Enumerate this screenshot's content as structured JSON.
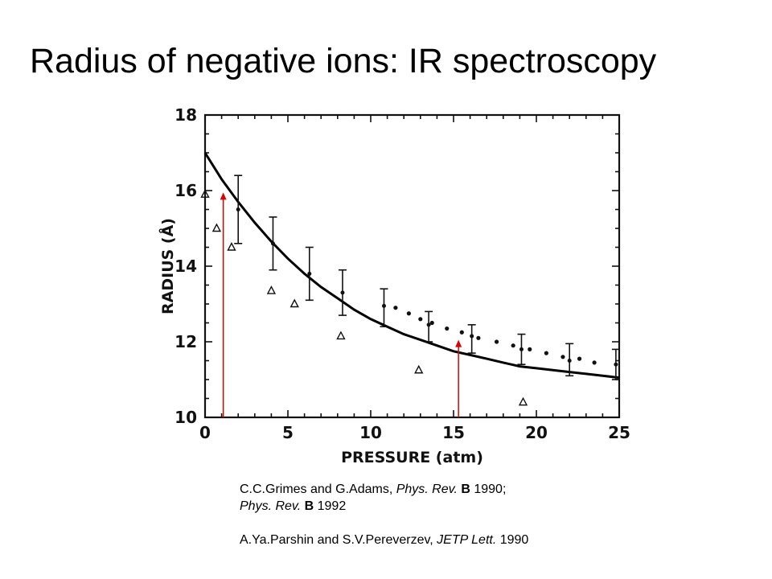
{
  "slide": {
    "title": "Radius of negative ions: IR spectroscopy"
  },
  "references": {
    "ref1_part1": "C.C.Grimes and G.Adams, ",
    "ref1_journal1": "Phys. Rev.",
    "ref1_vol1": "B",
    "ref1_year1": " 1990;",
    "ref1_journal2": "Phys. Rev.",
    "ref1_vol2": "B",
    "ref1_year2": " 1992",
    "ref2_authors": "A.Ya.Parshin and S.V.Pereverzev, ",
    "ref2_journal": "JETP Lett.",
    "ref2_year": " 1990"
  },
  "colors": {
    "axis": "#111111",
    "curve": "#000000",
    "arrow": "#dd0000"
  },
  "chart_data": {
    "type": "scatter",
    "xlabel": "PRESSURE (atm)",
    "ylabel": "RADIUS (Å)",
    "xlim": [
      0,
      25
    ],
    "ylim": [
      10,
      18
    ],
    "xticks": [
      0,
      5,
      10,
      15,
      20,
      25
    ],
    "yticks": [
      10,
      12,
      14,
      16,
      18
    ],
    "grid": false,
    "series": [
      {
        "kind": "curve",
        "points": [
          [
            0,
            17.0
          ],
          [
            1,
            16.3
          ],
          [
            2,
            15.7
          ],
          [
            3,
            15.15
          ],
          [
            4,
            14.65
          ],
          [
            5,
            14.2
          ],
          [
            6,
            13.8
          ],
          [
            7,
            13.45
          ],
          [
            8,
            13.15
          ],
          [
            9,
            12.85
          ],
          [
            10,
            12.6
          ],
          [
            11,
            12.4
          ],
          [
            12,
            12.2
          ],
          [
            13,
            12.05
          ],
          [
            14,
            11.9
          ],
          [
            15,
            11.75
          ],
          [
            16,
            11.65
          ],
          [
            17,
            11.55
          ],
          [
            18,
            11.45
          ],
          [
            19,
            11.35
          ],
          [
            20,
            11.3
          ],
          [
            21,
            11.25
          ],
          [
            22,
            11.2
          ],
          [
            23,
            11.15
          ],
          [
            24,
            11.1
          ],
          [
            25,
            11.05
          ]
        ]
      },
      {
        "kind": "errorbar",
        "points": [
          {
            "x": 2.0,
            "y": 15.5,
            "lo": 14.6,
            "hi": 16.4
          },
          {
            "x": 4.1,
            "y": 14.6,
            "lo": 13.9,
            "hi": 15.3
          },
          {
            "x": 6.3,
            "y": 13.8,
            "lo": 13.1,
            "hi": 14.5
          },
          {
            "x": 8.3,
            "y": 13.3,
            "lo": 12.7,
            "hi": 13.9
          },
          {
            "x": 10.8,
            "y": 12.95,
            "lo": 12.4,
            "hi": 13.4
          },
          {
            "x": 13.5,
            "y": 12.45,
            "lo": 12.0,
            "hi": 12.8
          },
          {
            "x": 16.1,
            "y": 12.15,
            "lo": 11.7,
            "hi": 12.45
          },
          {
            "x": 19.1,
            "y": 11.8,
            "lo": 11.4,
            "hi": 12.2
          },
          {
            "x": 22.0,
            "y": 11.5,
            "lo": 11.1,
            "hi": 11.95
          },
          {
            "x": 24.8,
            "y": 11.4,
            "lo": 11.0,
            "hi": 11.8
          }
        ]
      },
      {
        "kind": "dots",
        "points": [
          [
            11.5,
            12.9
          ],
          [
            12.3,
            12.75
          ],
          [
            13.0,
            12.6
          ],
          [
            13.7,
            12.5
          ],
          [
            14.6,
            12.35
          ],
          [
            15.5,
            12.25
          ],
          [
            16.5,
            12.1
          ],
          [
            17.6,
            12.0
          ],
          [
            18.6,
            11.9
          ],
          [
            19.6,
            11.8
          ],
          [
            20.6,
            11.7
          ],
          [
            21.6,
            11.6
          ],
          [
            22.6,
            11.55
          ],
          [
            23.5,
            11.45
          ]
        ]
      },
      {
        "kind": "triangles",
        "points": [
          [
            0.0,
            15.9
          ],
          [
            0.7,
            15.0
          ],
          [
            1.6,
            14.5
          ],
          [
            4.0,
            13.35
          ],
          [
            5.4,
            13.0
          ],
          [
            8.2,
            12.15
          ],
          [
            12.9,
            11.25
          ],
          [
            19.2,
            10.4
          ]
        ]
      }
    ],
    "annotations": [
      {
        "type": "arrow",
        "x": 1.1,
        "y_from": 10,
        "y_to": 15.95
      },
      {
        "type": "arrow",
        "x": 15.3,
        "y_from": 10,
        "y_to": 12.05
      }
    ]
  }
}
